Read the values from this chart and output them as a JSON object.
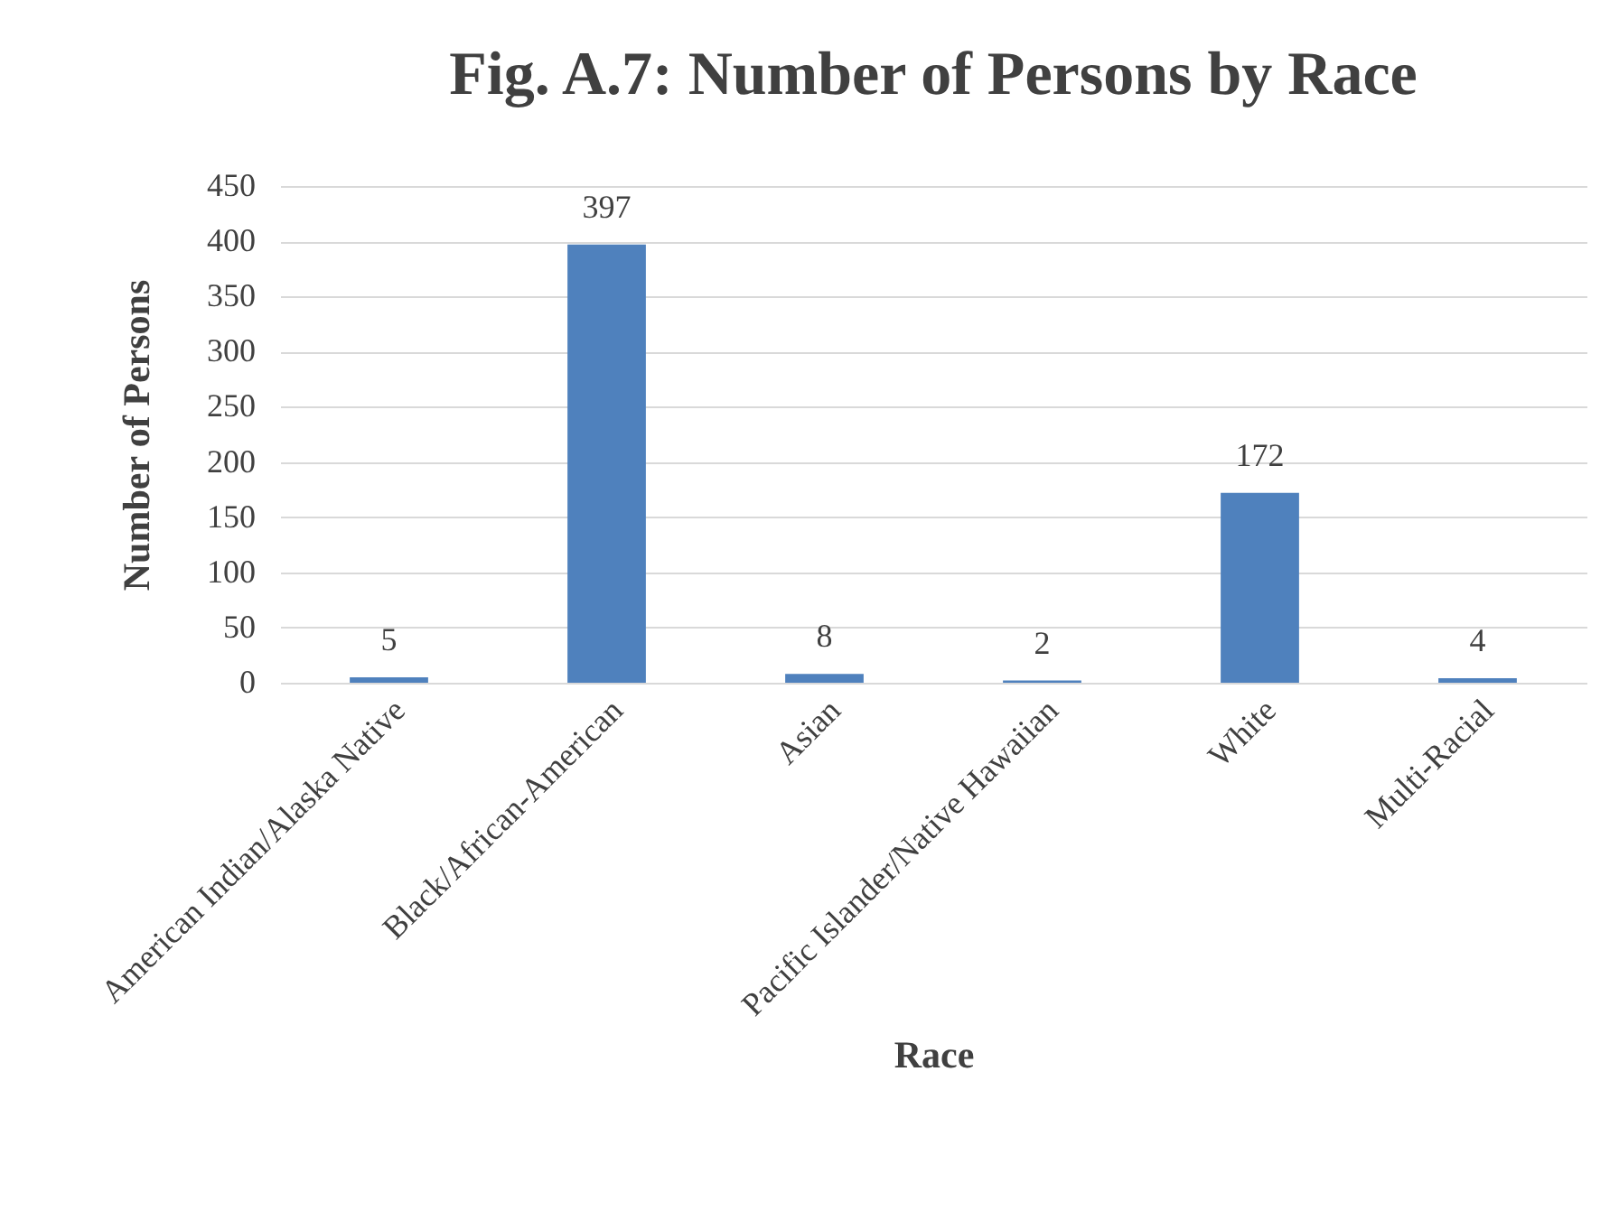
{
  "chart_data": {
    "type": "bar",
    "title": "Fig. A.7: Number of Persons by Race",
    "xlabel": "Race",
    "ylabel": "Number of Persons",
    "categories": [
      "American Indian/Alaska Native",
      "Black/African-American",
      "Asian",
      "Pacific Islander/Native Hawaiian",
      "White",
      "Multi-Racial"
    ],
    "values": [
      5,
      397,
      8,
      2,
      172,
      4
    ],
    "color": "#4f81bd",
    "ylim": [
      0,
      450
    ],
    "yticks": [
      0,
      50,
      100,
      150,
      200,
      250,
      300,
      350,
      400,
      450
    ],
    "grid": "y",
    "data_labels": true
  }
}
